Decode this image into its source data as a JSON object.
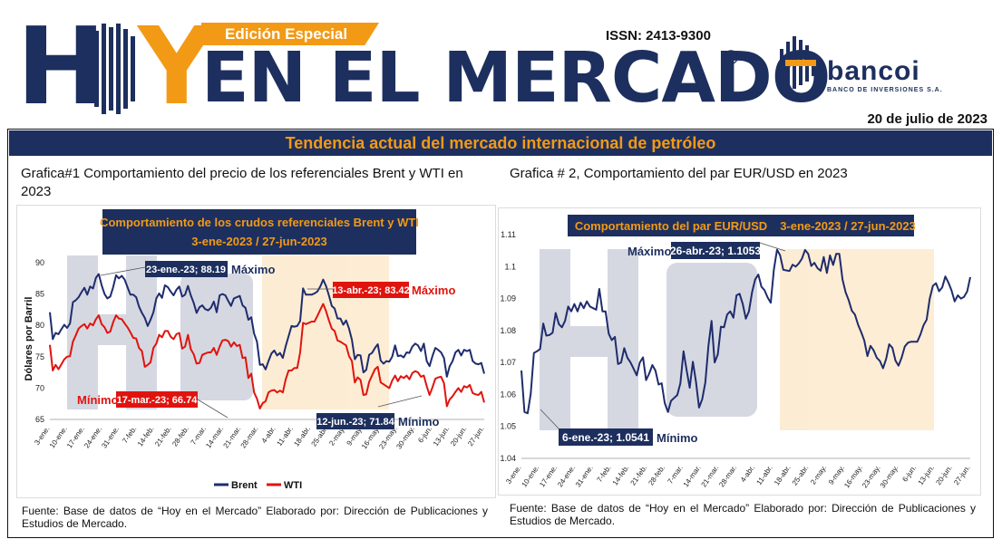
{
  "header": {
    "logo_letters": [
      "H",
      "Y"
    ],
    "edition": "Edición Especial",
    "title": "EN EL MERCADO",
    "copyright": "©",
    "issn": "ISSN: 2413-9300",
    "bank_name": "bancoi",
    "bank_full": "BANCO DE INVERSIONES S.A.",
    "date": "20 de julio de 2023"
  },
  "banner": "Tendencia actual del mercado internacional de petróleo",
  "colors": {
    "navy": "#1d2f5e",
    "orange": "#f29a16",
    "red": "#e0140e",
    "brent": "#1f2c6d"
  },
  "chart1": {
    "caption": "Grafica#1 Comportamiento del precio de los referenciales Brent y WTI en 2023",
    "source": "Fuente: Base de datos de “Hoy en el Mercado” Elaborado por: Dirección de Publicaciones y Estudios de Mercado."
  },
  "chart2": {
    "caption": "Grafica # 2, Comportamiento del par EUR/USD en 2023",
    "source": "Fuente: Base de datos de “Hoy en el Mercado” Elaborado por: Dirección de Publicaciones y Estudios de Mercado."
  },
  "chart_data": [
    {
      "type": "line",
      "title": "Comportamiento de los crudos referenciales Brent y WTI",
      "subtitle": "3-ene-2023 / 27-jun-2023",
      "ylabel": "Dólares por Barril",
      "ylim": [
        65,
        90
      ],
      "yticks": [
        65,
        70,
        75,
        80,
        85,
        90
      ],
      "xticks": [
        "3-ene.",
        "10-ene.",
        "17-ene.",
        "24-ene.",
        "31-ene.",
        "7-feb.",
        "14-feb.",
        "21-feb.",
        "28-feb.",
        "7-mar.",
        "14-mar.",
        "21-mar.",
        "28-mar.",
        "4-abr.",
        "11-abr.",
        "18-abr.",
        "25-abr.",
        "2-may.",
        "9-may.",
        "16-may.",
        "23-may.",
        "30-may.",
        "6-jun.",
        "13-jun.",
        "20-jun.",
        "27-jun."
      ],
      "legend": "bottom",
      "series": [
        {
          "name": "Brent",
          "color": "#1f2c6d",
          "values": [
            82.1,
            77.8,
            78.8,
            78.6,
            79.4,
            80.1,
            79.6,
            80.3,
            83.7,
            84.0,
            84.5,
            85.3,
            86.0,
            84.9,
            86.2,
            85.9,
            87.6,
            88.19,
            86.4,
            85.0,
            84.3,
            84.6,
            86.1,
            88.0,
            87.5,
            87.9,
            87.3,
            86.1,
            84.9,
            84.9,
            84.5,
            83.0,
            82.0,
            81.2,
            79.9,
            80.9,
            82.1,
            84.3,
            85.1,
            84.4,
            86.4,
            86.1,
            85.4,
            84.8,
            85.7,
            86.2,
            84.6,
            84.9,
            86.3,
            84.8,
            83.6,
            82.0,
            82.9,
            83.2,
            82.6,
            82.4,
            82.8,
            83.8,
            82.1,
            84.8,
            85.0,
            84.8,
            83.9,
            83.1,
            84.3,
            84.5,
            84.7,
            83.2,
            82.8,
            80.9,
            81.3,
            78.7,
            77.4,
            73.7,
            73.8,
            72.97,
            74.3,
            75.5,
            76.0,
            75.2,
            75.6,
            74.8,
            76.7,
            78.3,
            79.9,
            79.8,
            79.9,
            80.7,
            85.9,
            84.9,
            84.9,
            84.9,
            85.1,
            85.4,
            86.2,
            87.3,
            86.3,
            84.8,
            83.1,
            82.7,
            81.1,
            81.1,
            80.1,
            80.8,
            79.5,
            77.7,
            74.6,
            75.3,
            75.2,
            72.5,
            72.9,
            75.3,
            75.6,
            76.4,
            77.0,
            74.4,
            73.9,
            74.3,
            74.2,
            75.0,
            76.8,
            75.1,
            75.2,
            74.9,
            75.7,
            75.6,
            76.6,
            77.1,
            76.8,
            75.9,
            77.1,
            74.3,
            73.5,
            75.1,
            76.4,
            76.1,
            75.7,
            74.8,
            71.8,
            73.5,
            74.3,
            75.7,
            76.1,
            75.2,
            76.1,
            75.9,
            76.1,
            74.3,
            73.9,
            73.8,
            74.0,
            72.3
          ],
          "annotations": [
            {
              "label": "23-ene.-23; 88.19",
              "tag": "Máximo"
            },
            {
              "label": "12-jun.-23; 71.84",
              "tag": "Mínimo"
            }
          ]
        },
        {
          "name": "WTI",
          "color": "#e0140e",
          "values": [
            76.9,
            72.8,
            73.7,
            73.0,
            73.8,
            74.6,
            75.0,
            75.1,
            77.4,
            78.4,
            79.5,
            79.9,
            80.2,
            79.5,
            80.3,
            80.0,
            81.0,
            81.6,
            80.2,
            79.7,
            78.8,
            79.0,
            80.5,
            81.6,
            81.1,
            81.0,
            80.3,
            79.7,
            78.9,
            78.0,
            77.9,
            76.4,
            75.9,
            73.4,
            73.7,
            74.1,
            76.4,
            77.1,
            78.5,
            78.1,
            79.1,
            79.1,
            78.2,
            77.8,
            78.6,
            78.8,
            76.3,
            76.6,
            78.5,
            76.2,
            75.4,
            73.9,
            74.0,
            75.3,
            75.5,
            75.7,
            75.7,
            76.4,
            75.3,
            76.6,
            77.6,
            77.7,
            77.5,
            76.6,
            77.3,
            76.7,
            76.9,
            74.8,
            74.9,
            71.6,
            72.3,
            69.3,
            68.3,
            66.74,
            67.6,
            67.9,
            69.3,
            69.6,
            69.7,
            69.3,
            69.6,
            69.3,
            71.4,
            72.8,
            72.8,
            73.2,
            73.2,
            75.7,
            80.4,
            80.2,
            80.4,
            80.6,
            80.6,
            81.5,
            82.5,
            83.42,
            82.3,
            80.8,
            79.5,
            79.1,
            77.6,
            77.4,
            77.1,
            76.8,
            75.1,
            74.3,
            70.9,
            71.7,
            71.3,
            68.9,
            69.0,
            71.0,
            72.0,
            73.0,
            73.4,
            70.9,
            70.6,
            70.3,
            70.0,
            71.2,
            72.0,
            71.1,
            71.9,
            71.6,
            72.0,
            71.4,
            72.4,
            72.7,
            72.5,
            71.8,
            72.0,
            70.3,
            68.9,
            70.1,
            71.5,
            71.7,
            71.8,
            70.8,
            67.1,
            68.2,
            68.7,
            69.4,
            70.0,
            69.4,
            70.3,
            70.1,
            70.5,
            69.2,
            69.0,
            68.9,
            69.4,
            67.7
          ],
          "annotations": [
            {
              "label": "13-abr.-23; 83.42",
              "tag": "Máximo"
            },
            {
              "label": "17-mar.-23; 66.74",
              "tag": "Mínimo"
            }
          ]
        }
      ]
    },
    {
      "type": "line",
      "title": "Comportamiento del par EUR/USD",
      "subtitle": "3-ene-2023 / 27-jun-2023",
      "ylim": [
        1.04,
        1.11
      ],
      "yticks": [
        "1.04",
        "1.05",
        "1.06",
        "1.07",
        "1.08",
        "1.09",
        "1.1",
        "1.11"
      ],
      "xticks": [
        "3-ene.",
        "10-ene.",
        "17-ene.",
        "24-ene.",
        "31-ene.",
        "7-feb.",
        "14-feb.",
        "21-feb.",
        "28-feb.",
        "7-mar.",
        "14-mar.",
        "21-mar.",
        "28-mar.",
        "4-abr.",
        "11-abr.",
        "18-abr.",
        "25-abr.",
        "2-may.",
        "9-may.",
        "16-may.",
        "23-may.",
        "30-may.",
        "6-jun.",
        "13-jun.",
        "20-jun.",
        "27-jun."
      ],
      "series": [
        {
          "name": "EUR/USD",
          "color": "#1f2c6d",
          "values": [
            1.0675,
            1.0545,
            1.0541,
            1.0602,
            1.073,
            1.0735,
            1.0742,
            1.0822,
            1.0784,
            1.0786,
            1.0793,
            1.0855,
            1.082,
            1.081,
            1.083,
            1.0875,
            1.086,
            1.0883,
            1.086,
            1.0887,
            1.087,
            1.0891,
            1.0875,
            1.087,
            1.0865,
            1.093,
            1.086,
            1.086,
            1.079,
            1.077,
            1.078,
            1.0695,
            1.07,
            1.0745,
            1.0715,
            1.07,
            1.068,
            1.066,
            1.07,
            1.0716,
            1.0645,
            1.0665,
            1.0692,
            1.0675,
            1.0631,
            1.0635,
            1.0573,
            1.0545,
            1.058,
            1.0589,
            1.0598,
            1.0635,
            1.0735,
            1.0676,
            1.0621,
            1.0702,
            1.064,
            1.0559,
            1.0585,
            1.0637,
            1.0753,
            1.083,
            1.07,
            1.0725,
            1.0812,
            1.081,
            1.085,
            1.086,
            1.084,
            1.091,
            1.0915,
            1.0883,
            1.0837,
            1.086,
            1.092,
            1.096,
            1.0975,
            1.0937,
            1.0926,
            1.0903,
            1.0887,
            1.099,
            1.1053,
            1.1035,
            1.099,
            1.0988,
            1.0986,
            1.1006,
            1.1,
            1.101,
            1.1025,
            1.1052,
            1.104,
            1.1002,
            1.1012,
            1.0995,
            1.0987,
            1.103,
            1.098,
            1.1035,
            1.1005,
            1.104,
            1.104,
            1.096,
            1.092,
            1.0895,
            1.0862,
            1.085,
            1.0818,
            1.0795,
            1.0769,
            1.072,
            1.0752,
            1.0738,
            1.0715,
            1.0705,
            1.0682,
            1.0711,
            1.0757,
            1.0746,
            1.0706,
            1.069,
            1.0716,
            1.075,
            1.0762,
            1.0765,
            1.0765,
            1.0765,
            1.0787,
            1.0816,
            1.0834,
            1.09,
            1.094,
            1.0948,
            1.0923,
            1.0935,
            1.0969,
            1.095,
            1.0925,
            1.0891,
            1.091,
            1.09,
            1.0905,
            1.0922,
            1.0967
          ],
          "annotations": [
            {
              "label": "26-abr.-23; 1.1053",
              "tag": "Máximo"
            },
            {
              "label": "6-ene.-23; 1.0541",
              "tag": "Mínimo"
            }
          ]
        }
      ]
    }
  ]
}
